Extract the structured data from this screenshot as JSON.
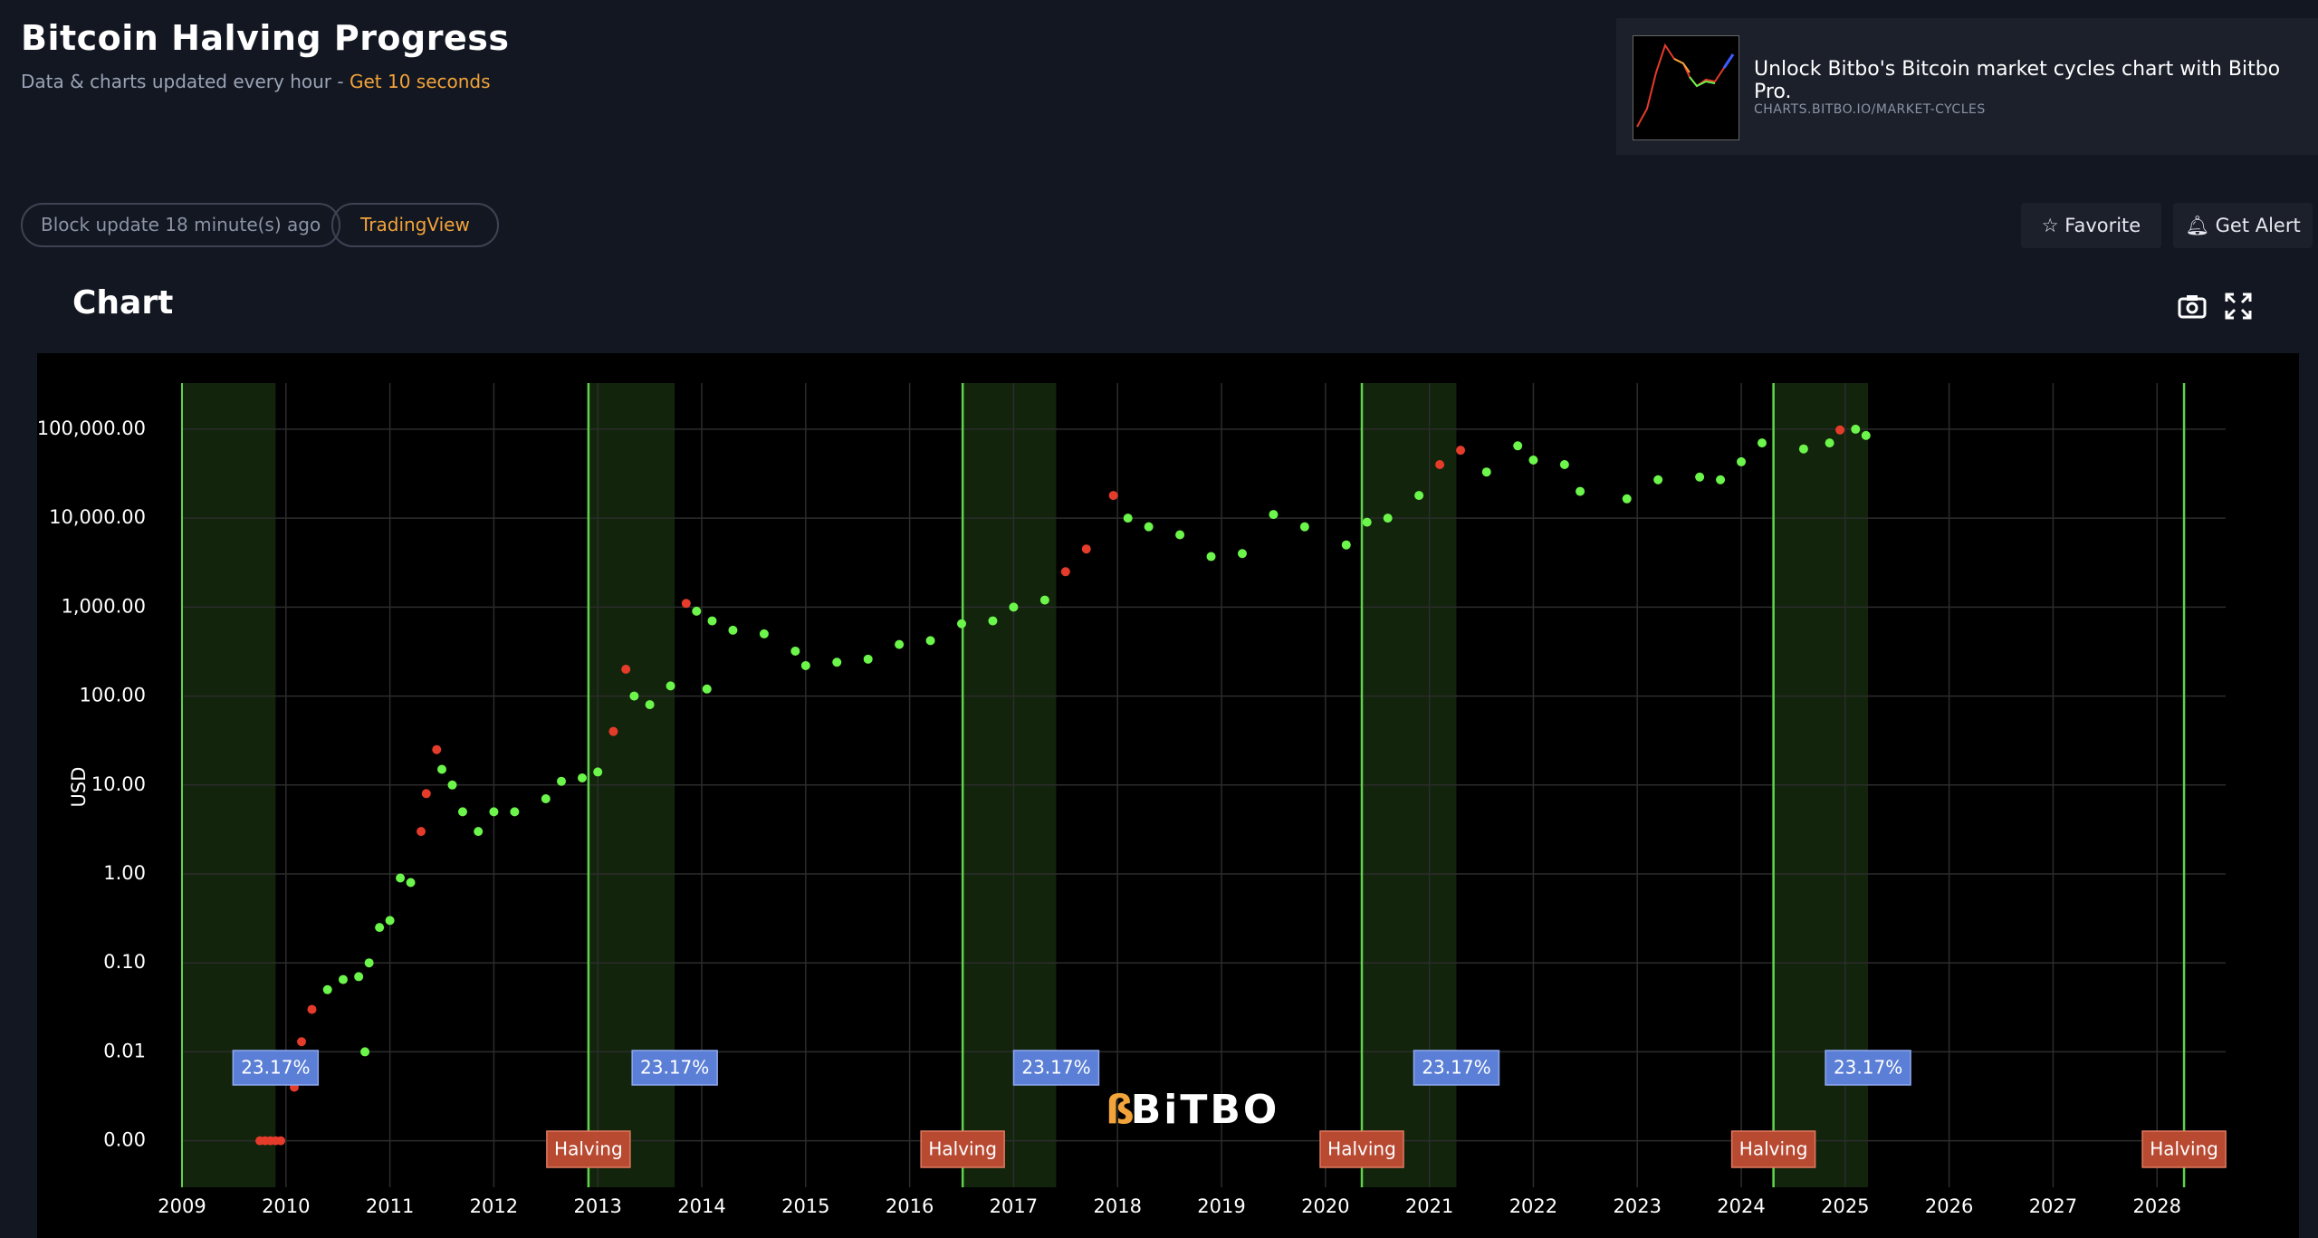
{
  "header": {
    "title": "Bitcoin Halving Progress",
    "subtitle": "Data & charts updated every hour - ",
    "subtitle_link": "Get 10 seconds"
  },
  "promo": {
    "text": "Unlock Bitbo's Bitcoin market cycles chart with Bitbo Pro.",
    "url": "CHARTS.BITBO.IO/MARKET-CYCLES"
  },
  "toolbar": {
    "status": "Block update 18 minute(s) ago",
    "source": "TradingView",
    "favorite": "Favorite",
    "alert": "Get Alert"
  },
  "section_title": "Chart",
  "chart_data": {
    "type": "scatter",
    "y_label": "USD",
    "watermark": "BiTBO",
    "log_y": true,
    "grid": true,
    "xlim": [
      2009,
      2028.66
    ],
    "xticks": [
      2009,
      2010,
      2011,
      2012,
      2013,
      2014,
      2015,
      2016,
      2017,
      2018,
      2019,
      2020,
      2021,
      2022,
      2023,
      2024,
      2025,
      2026,
      2027,
      2028
    ],
    "ylim": [
      0.0003,
      330000
    ],
    "yticks": [
      {
        "value": 0.001,
        "label": "0.00"
      },
      {
        "value": 0.01,
        "label": "0.01"
      },
      {
        "value": 0.1,
        "label": "0.10"
      },
      {
        "value": 1,
        "label": "1.00"
      },
      {
        "value": 10,
        "label": "10.00"
      },
      {
        "value": 100,
        "label": "100.00"
      },
      {
        "value": 1000,
        "label": "1,000.00"
      },
      {
        "value": 10000,
        "label": "10,000.00"
      },
      {
        "value": 100000,
        "label": "100,000.00"
      }
    ],
    "cycles": [
      {
        "start": 2009.0,
        "end": 2009.9,
        "label": "23.17%"
      },
      {
        "start": 2012.91,
        "end": 2013.74,
        "label": "23.17%"
      },
      {
        "start": 2016.51,
        "end": 2017.41,
        "label": "23.17%"
      },
      {
        "start": 2020.35,
        "end": 2021.26,
        "label": "23.17%"
      },
      {
        "start": 2024.31,
        "end": 2025.22,
        "label": "23.17%"
      }
    ],
    "halvings": [
      {
        "x": 2012.91,
        "label": "Halving"
      },
      {
        "x": 2016.51,
        "label": "Halving"
      },
      {
        "x": 2020.35,
        "label": "Halving"
      },
      {
        "x": 2024.31,
        "label": "Halving"
      },
      {
        "x": 2028.26,
        "label": "Halving"
      }
    ],
    "series": [
      {
        "color": "#6cf54b",
        "x": [
          2010.4,
          2010.55,
          2010.7,
          2010.76,
          2010.8,
          2010.9,
          2011.0,
          2011.1,
          2011.2,
          2011.5,
          2011.6,
          2011.7,
          2011.85,
          2012.0,
          2012.2,
          2012.5,
          2012.65,
          2012.85,
          2013.0,
          2013.35,
          2013.5,
          2013.7,
          2013.95,
          2014.05,
          2014.1,
          2014.3,
          2014.6,
          2014.9,
          2015.0,
          2015.3,
          2015.6,
          2015.9,
          2016.2,
          2016.5,
          2016.8,
          2017.0,
          2017.3,
          2018.1,
          2018.3,
          2018.6,
          2018.9,
          2019.2,
          2019.5,
          2019.8,
          2020.2,
          2020.4,
          2020.6,
          2020.9,
          2021.55,
          2021.85,
          2022.0,
          2022.3,
          2022.45,
          2022.9,
          2023.2,
          2023.6,
          2023.8,
          2024.0,
          2024.2,
          2024.6,
          2024.85,
          2025.1,
          2025.2
        ],
        "values": [
          0.05,
          0.065,
          0.07,
          0.01,
          0.1,
          0.25,
          0.3,
          0.9,
          0.8,
          15,
          10,
          5,
          3,
          5,
          5,
          7,
          11,
          12,
          14,
          100,
          80,
          130,
          900,
          120,
          700,
          550,
          500,
          320,
          220,
          240,
          260,
          380,
          420,
          650,
          700,
          1000,
          1200,
          10000,
          8000,
          6500,
          3700,
          4000,
          11000,
          8000,
          5000,
          9000,
          10000,
          18000,
          33000,
          65000,
          45000,
          40000,
          20000,
          16500,
          27000,
          29000,
          27000,
          43000,
          70000,
          60000,
          70000,
          100000,
          85000
        ]
      },
      {
        "color": "#e53b2a",
        "x": [
          2009.75,
          2009.8,
          2009.85,
          2009.9,
          2009.95,
          2010.08,
          2010.15,
          2010.25,
          2011.3,
          2011.35,
          2011.45,
          2013.15,
          2013.27,
          2013.85,
          2017.5,
          2017.7,
          2017.96,
          2021.1,
          2021.3,
          2024.95
        ],
        "values": [
          0.001,
          0.001,
          0.001,
          0.001,
          0.001,
          0.004,
          0.013,
          0.03,
          3,
          8,
          25,
          40,
          200,
          1100,
          2500,
          4500,
          18000,
          40000,
          58000,
          98000
        ]
      }
    ]
  }
}
